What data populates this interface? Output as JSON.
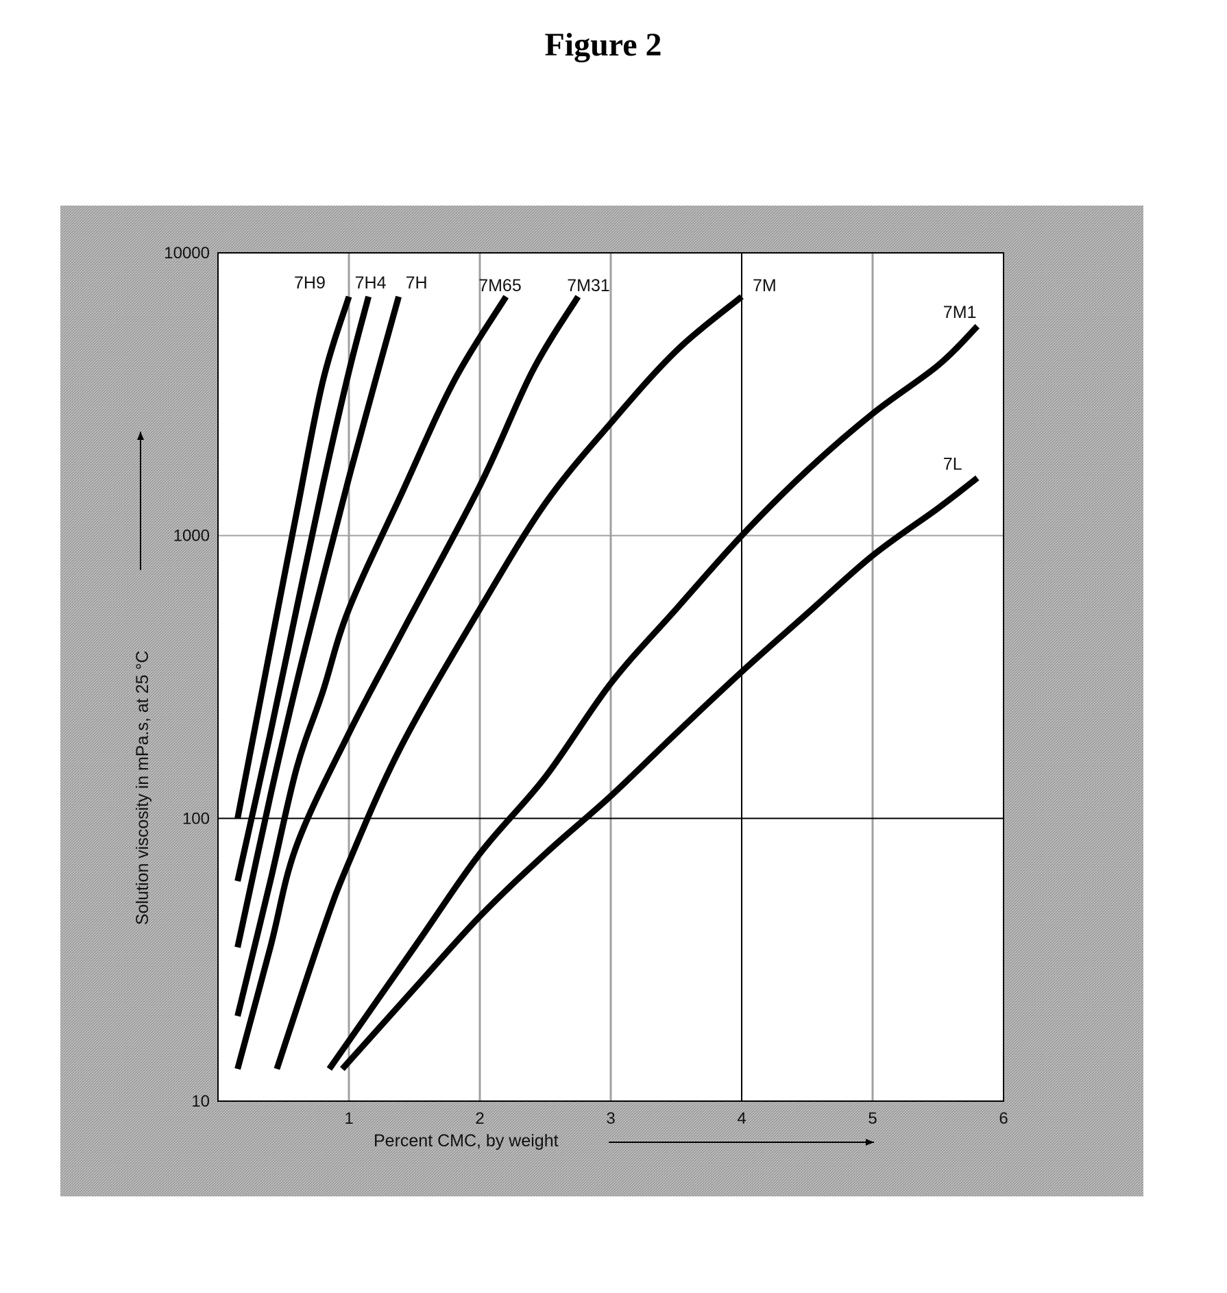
{
  "figure_title": "Figure 2",
  "colors": {
    "panel_background": "#a9a9a9",
    "plot_background": "#ffffff",
    "series_line": "#000000",
    "minor_gridline": "#a0a0a0",
    "major_gridline": "#000000"
  },
  "chart_data": {
    "type": "line",
    "xlabel": "Percent CMC, by weight",
    "ylabel": "Solution viscosity in mPa.s, at 25 °C",
    "xlim": [
      0,
      6
    ],
    "ylim": [
      10,
      10000
    ],
    "yscale": "log",
    "x_ticks": [
      "1",
      "2",
      "3",
      "4",
      "5",
      "6"
    ],
    "y_ticks": [
      "10",
      "100",
      "1000",
      "10000"
    ],
    "grid": true,
    "series": [
      {
        "name": "7H9",
        "x": [
          0.15,
          0.4,
          0.6,
          0.8,
          1.0
        ],
        "y": [
          100,
          400,
          1200,
          3500,
          7000
        ]
      },
      {
        "name": "7H4",
        "x": [
          0.15,
          0.4,
          0.6,
          0.8,
          1.0,
          1.15
        ],
        "y": [
          60,
          200,
          550,
          1500,
          3800,
          7000
        ]
      },
      {
        "name": "7H",
        "x": [
          0.15,
          0.4,
          0.6,
          0.8,
          1.0,
          1.2,
          1.38
        ],
        "y": [
          35,
          120,
          300,
          700,
          1600,
          3500,
          7000
        ]
      },
      {
        "name": "7M65",
        "x": [
          0.15,
          0.4,
          0.6,
          0.8,
          1.0,
          1.4,
          1.8,
          2.2
        ],
        "y": [
          20,
          60,
          150,
          280,
          550,
          1400,
          3500,
          7000
        ]
      },
      {
        "name": "7M31",
        "x": [
          0.15,
          0.4,
          0.6,
          1.0,
          1.4,
          2.0,
          2.4,
          2.75
        ],
        "y": [
          13,
          35,
          80,
          200,
          450,
          1500,
          3800,
          7000
        ]
      },
      {
        "name": "7M",
        "x": [
          0.45,
          0.8,
          1.0,
          1.4,
          2.0,
          2.5,
          3.0,
          3.5,
          4.0
        ],
        "y": [
          13,
          40,
          70,
          180,
          550,
          1300,
          2500,
          4500,
          7000
        ]
      },
      {
        "name": "7M1",
        "x": [
          0.85,
          1.5,
          2.0,
          2.5,
          3.0,
          3.5,
          4.0,
          4.5,
          5.0,
          5.5,
          5.8
        ],
        "y": [
          13,
          35,
          75,
          140,
          300,
          550,
          1000,
          1700,
          2700,
          4000,
          5500
        ]
      },
      {
        "name": "7L",
        "x": [
          0.95,
          1.5,
          2.0,
          2.5,
          3.0,
          3.5,
          4.0,
          4.5,
          5.0,
          5.5,
          5.8
        ],
        "y": [
          13,
          25,
          45,
          75,
          120,
          200,
          330,
          530,
          850,
          1250,
          1600
        ]
      }
    ]
  }
}
